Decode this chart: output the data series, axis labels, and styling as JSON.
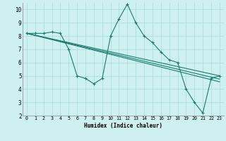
{
  "title": "",
  "xlabel": "Humidex (Indice chaleur)",
  "background_color": "#cff0f0",
  "grid_color": "#aadddd",
  "line_color": "#1a7a6e",
  "xlim": [
    -0.5,
    23.5
  ],
  "ylim": [
    2,
    10.5
  ],
  "yticks": [
    2,
    3,
    4,
    5,
    6,
    7,
    8,
    9,
    10
  ],
  "xticks": [
    0,
    1,
    2,
    3,
    4,
    5,
    6,
    7,
    8,
    9,
    10,
    11,
    12,
    13,
    14,
    15,
    16,
    17,
    18,
    19,
    20,
    21,
    22,
    23
  ],
  "series": [
    {
      "x": [
        0,
        1,
        2,
        3,
        4,
        5,
        6,
        7,
        8,
        9,
        10,
        11,
        12,
        13,
        14,
        15,
        16,
        17,
        18,
        19,
        20,
        21,
        22,
        23
      ],
      "y": [
        8.2,
        8.2,
        8.2,
        8.3,
        8.2,
        7.0,
        5.0,
        4.8,
        4.4,
        4.8,
        8.0,
        9.3,
        10.4,
        9.0,
        8.0,
        7.5,
        6.8,
        6.2,
        6.0,
        4.0,
        3.0,
        2.2,
        4.8,
        5.0
      ],
      "has_markers": true
    },
    {
      "x": [
        0,
        23
      ],
      "y": [
        8.2,
        5.0
      ],
      "has_markers": false
    },
    {
      "x": [
        0,
        23
      ],
      "y": [
        8.2,
        4.75
      ],
      "has_markers": false
    },
    {
      "x": [
        0,
        23
      ],
      "y": [
        8.2,
        4.55
      ],
      "has_markers": false
    }
  ]
}
